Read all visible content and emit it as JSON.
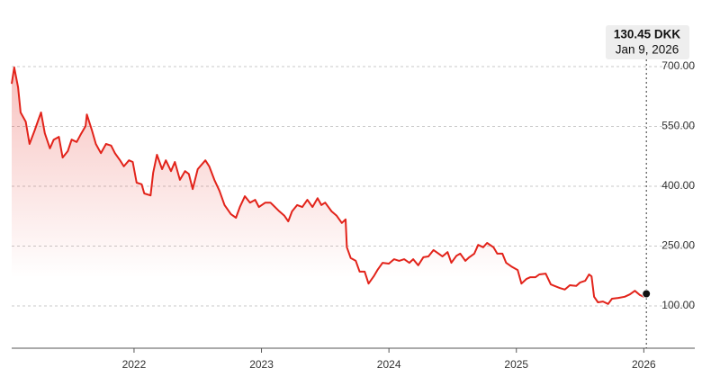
{
  "chart_data": {
    "type": "line",
    "x": [
      2021.04,
      2021.06,
      2021.09,
      2021.11,
      2021.15,
      2021.18,
      2021.22,
      2021.25,
      2021.27,
      2021.3,
      2021.34,
      2021.37,
      2021.41,
      2021.44,
      2021.48,
      2021.51,
      2021.55,
      2021.58,
      2021.62,
      2021.63,
      2021.67,
      2021.7,
      2021.74,
      2021.78,
      2021.82,
      2021.85,
      2021.89,
      2021.92,
      2021.96,
      2021.99,
      2022.02,
      2022.06,
      2022.08,
      2022.13,
      2022.15,
      2022.18,
      2022.22,
      2022.25,
      2022.29,
      2022.32,
      2022.36,
      2022.4,
      2022.43,
      2022.46,
      2022.5,
      2022.56,
      2022.59,
      2022.63,
      2022.67,
      2022.71,
      2022.76,
      2022.8,
      2022.83,
      2022.87,
      2022.91,
      2022.95,
      2022.98,
      2023.03,
      2023.07,
      2023.09,
      2023.14,
      2023.18,
      2023.21,
      2023.24,
      2023.28,
      2023.32,
      2023.36,
      2023.4,
      2023.44,
      2023.47,
      2023.5,
      2023.55,
      2023.59,
      2023.63,
      2023.66,
      2023.67,
      2023.7,
      2023.74,
      2023.77,
      2023.81,
      2023.84,
      2023.88,
      2023.91,
      2023.95,
      2024.0,
      2024.04,
      2024.08,
      2024.12,
      2024.16,
      2024.19,
      2024.23,
      2024.27,
      2024.31,
      2024.35,
      2024.39,
      2024.42,
      2024.46,
      2024.49,
      2024.53,
      2024.56,
      2024.6,
      2024.63,
      2024.67,
      2024.7,
      2024.74,
      2024.77,
      2024.82,
      2024.85,
      2024.89,
      2024.92,
      2024.96,
      2025.01,
      2025.04,
      2025.08,
      2025.11,
      2025.15,
      2025.18,
      2025.23,
      2025.27,
      2025.3,
      2025.34,
      2025.38,
      2025.42,
      2025.47,
      2025.5,
      2025.54,
      2025.57,
      2025.59,
      2025.61,
      2025.64,
      2025.68,
      2025.72,
      2025.75,
      2025.8,
      2025.85,
      2025.89,
      2025.93,
      2025.97,
      2026.0,
      2026.02
    ],
    "series": [
      {
        "color": "#e2231a",
        "values": [
          657,
          698,
          648,
          585,
          562,
          506,
          540,
          567,
          585,
          533,
          495,
          517,
          524,
          472,
          488,
          517,
          511,
          529,
          551,
          580,
          540,
          506,
          483,
          506,
          502,
          483,
          465,
          450,
          465,
          461,
          409,
          405,
          382,
          377,
          434,
          479,
          443,
          465,
          438,
          461,
          416,
          438,
          431,
          393,
          443,
          465,
          450,
          416,
          389,
          353,
          330,
          321,
          348,
          375,
          359,
          366,
          348,
          359,
          359,
          353,
          337,
          326,
          312,
          337,
          353,
          348,
          366,
          348,
          370,
          353,
          359,
          337,
          326,
          308,
          317,
          247,
          220,
          213,
          186,
          186,
          156,
          174,
          190,
          208,
          206,
          217,
          213,
          217,
          208,
          217,
          202,
          222,
          224,
          240,
          231,
          224,
          235,
          208,
          226,
          231,
          213,
          222,
          231,
          253,
          247,
          258,
          247,
          231,
          231,
          208,
          199,
          190,
          156,
          168,
          172,
          172,
          179,
          181,
          154,
          150,
          145,
          141,
          152,
          150,
          159,
          163,
          179,
          174,
          123,
          109,
          111,
          105,
          118,
          120,
          123,
          129,
          138,
          127,
          123,
          130.45
        ]
      }
    ],
    "xlim": [
      2021.04,
      2026.4
    ],
    "xticks": [
      2022,
      2023,
      2024,
      2025,
      2026
    ],
    "ylim": [
      -6,
      730
    ],
    "yticks": [
      {
        "value": 100,
        "label": "100.00"
      },
      {
        "value": 250,
        "label": "250.00"
      },
      {
        "value": 400,
        "label": "400.00"
      },
      {
        "value": 550,
        "label": "550.00"
      },
      {
        "value": 700,
        "label": "700.00"
      }
    ],
    "grid": true,
    "annotation": {
      "label": "130.45 DKK",
      "date": "Jan 9, 2026"
    }
  }
}
